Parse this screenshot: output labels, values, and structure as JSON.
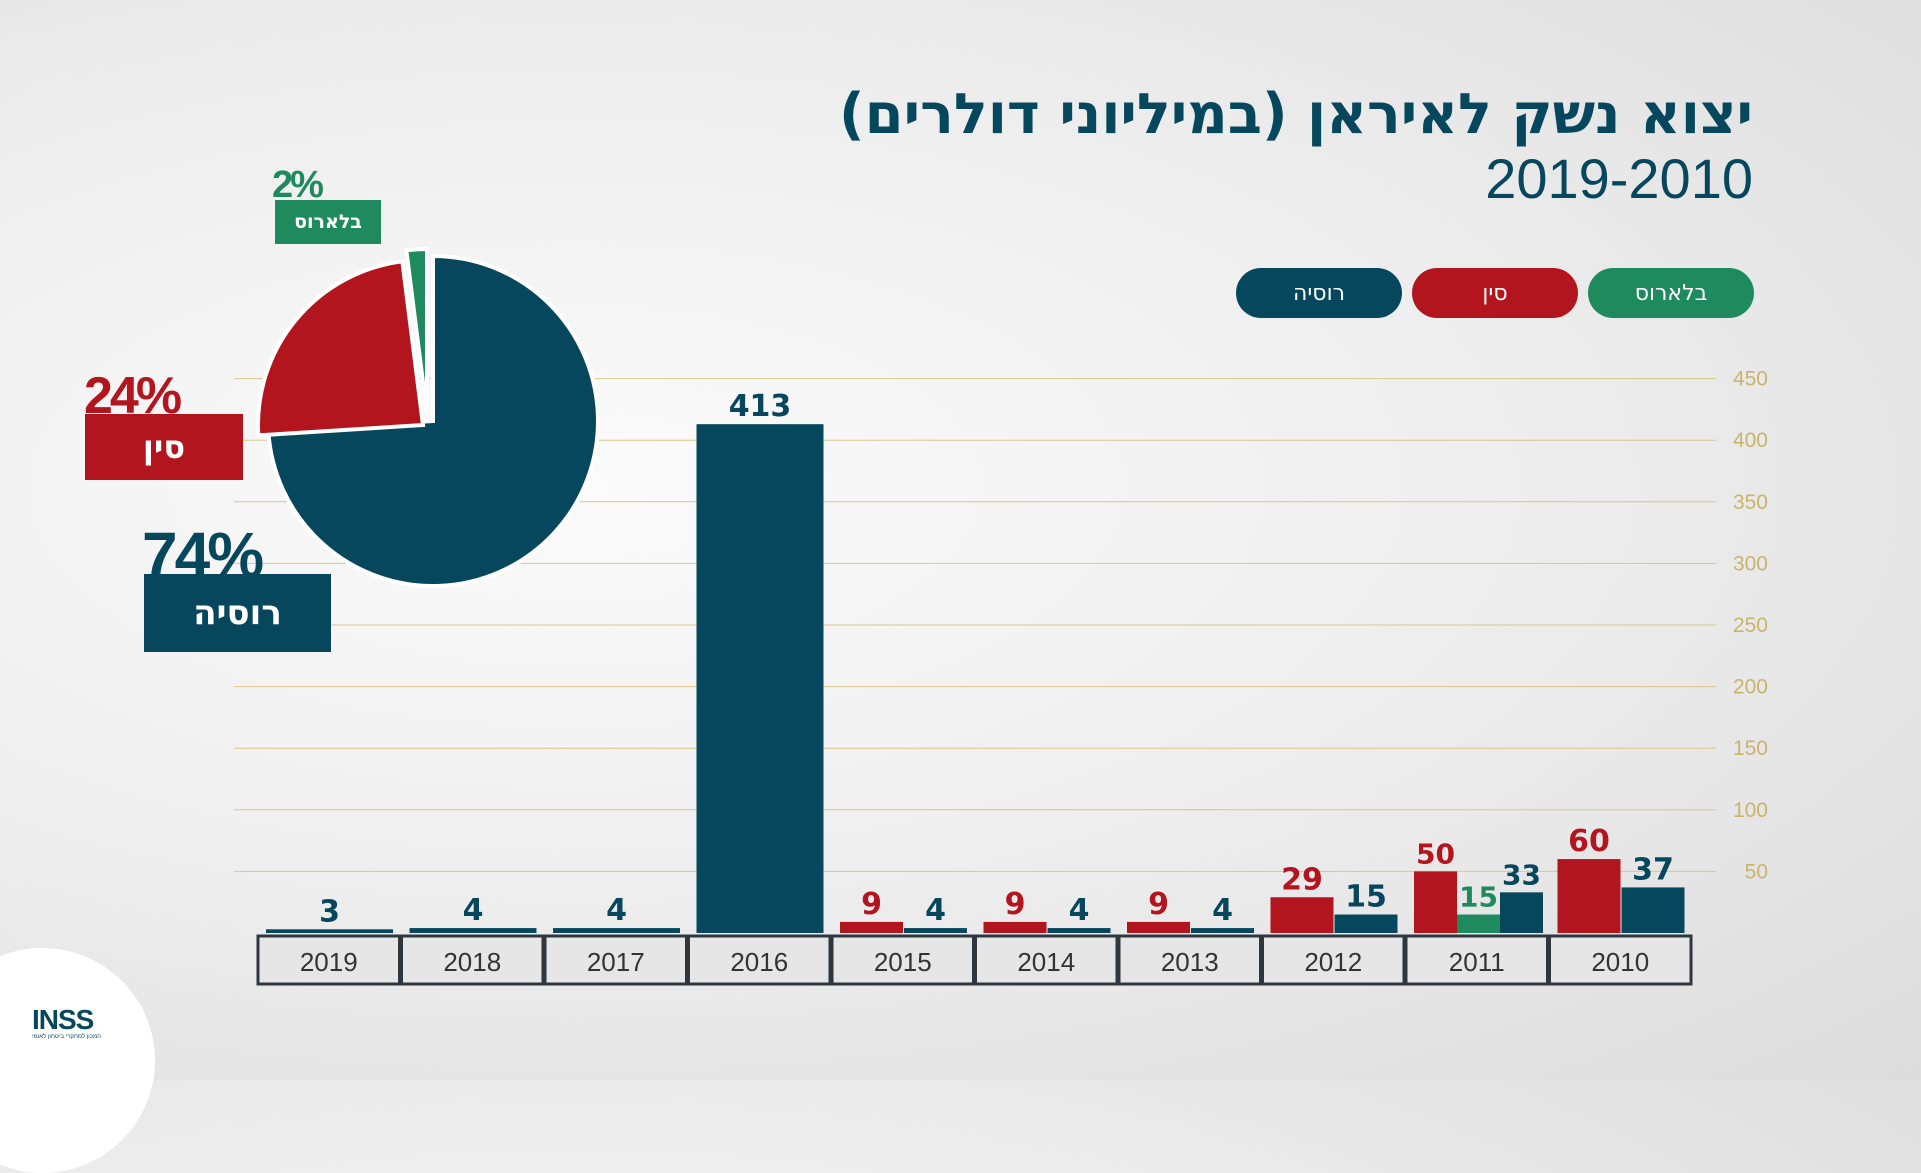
{
  "title": "יצוא נשק לאיראן (במיליוני דולרים)",
  "subtitle": "2019-2010",
  "colors": {
    "russia": "#07475e",
    "china": "#b3151f",
    "belarus": "#1f8a5e",
    "grid": "#d8c88a",
    "tick": "#c9b46a"
  },
  "legend": [
    {
      "label": "בלארוס",
      "color": "#1f8a5e"
    },
    {
      "label": "סין",
      "color": "#b3151f"
    },
    {
      "label": "רוסיה",
      "color": "#07475e"
    }
  ],
  "pie": {
    "belarus": {
      "pct": "2%",
      "label": "בלארוס"
    },
    "china": {
      "pct": "24%",
      "label": "סין"
    },
    "russia": {
      "pct": "74%",
      "label": "רוסיה"
    }
  },
  "logo": {
    "text": "INSS",
    "subtitle": "המכון למחקרי ביטחון לאומי"
  },
  "chart_data": [
    {
      "type": "bar",
      "title": "",
      "ylim": [
        0,
        450
      ],
      "yticks": [
        50,
        100,
        150,
        200,
        250,
        300,
        350,
        400,
        450
      ],
      "grid": true,
      "categories": [
        "2019",
        "2018",
        "2017",
        "2016",
        "2015",
        "2014",
        "2013",
        "2012",
        "2011",
        "2010"
      ],
      "series": [
        {
          "name": "סין",
          "color": "#b3151f",
          "values": [
            null,
            null,
            null,
            null,
            9,
            9,
            9,
            29,
            50,
            60
          ]
        },
        {
          "name": "בלארוס",
          "color": "#1f8a5e",
          "values": [
            null,
            null,
            null,
            null,
            null,
            null,
            null,
            null,
            15,
            null
          ]
        },
        {
          "name": "רוסיה",
          "color": "#07475e",
          "values": [
            3,
            4,
            4,
            413,
            4,
            4,
            4,
            15,
            33,
            37
          ]
        }
      ]
    },
    {
      "type": "pie",
      "slices": [
        {
          "name": "רוסיה",
          "value": 74,
          "color": "#07475e"
        },
        {
          "name": "סין",
          "value": 24,
          "color": "#b3151f"
        },
        {
          "name": "בלארוס",
          "value": 2,
          "color": "#1f8a5e"
        }
      ]
    }
  ]
}
